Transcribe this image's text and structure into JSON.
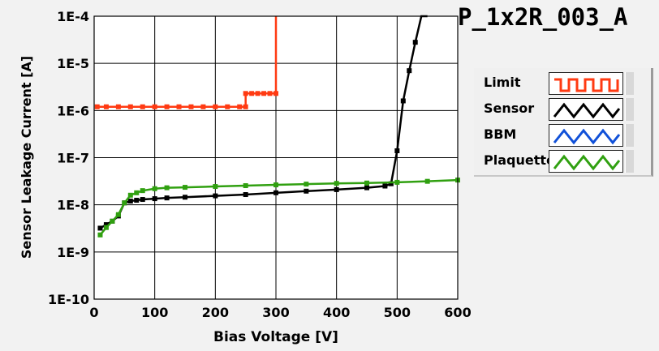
{
  "title": "P_1x2R_003_A",
  "legend": [
    {
      "label": "Limit",
      "color": "#ff3a12",
      "shape": "square-wave"
    },
    {
      "label": "Sensor",
      "color": "#000000",
      "shape": "triangle-wave"
    },
    {
      "label": "BBM",
      "color": "#1050d8",
      "shape": "triangle-wave"
    },
    {
      "label": "Plaquette",
      "color": "#30a010",
      "shape": "triangle-wave"
    }
  ],
  "chart_data": {
    "type": "line",
    "xlabel": "Bias Voltage [V]",
    "ylabel": "Sensor Leakage Current [A]",
    "xlim": [
      0,
      600
    ],
    "ylim_log10": [
      -10,
      -4
    ],
    "y_scale": "log",
    "grid": true,
    "x_ticks": [
      "0",
      "100",
      "200",
      "300",
      "400",
      "500",
      "600"
    ],
    "y_ticks": [
      "1E-10",
      "1E-9",
      "1E-8",
      "1E-7",
      "1E-6",
      "1E-5",
      "1E-4"
    ],
    "series": [
      {
        "name": "Limit",
        "color": "#ff3a12",
        "points": [
          [
            5,
            1.2e-06
          ],
          [
            20,
            1.2e-06
          ],
          [
            40,
            1.2e-06
          ],
          [
            60,
            1.2e-06
          ],
          [
            80,
            1.2e-06
          ],
          [
            100,
            1.2e-06
          ],
          [
            120,
            1.2e-06
          ],
          [
            140,
            1.2e-06
          ],
          [
            160,
            1.2e-06
          ],
          [
            180,
            1.2e-06
          ],
          [
            200,
            1.2e-06
          ],
          [
            220,
            1.2e-06
          ],
          [
            240,
            1.2e-06
          ],
          [
            250,
            1.2e-06
          ],
          [
            250,
            2.3e-06
          ],
          [
            260,
            2.3e-06
          ],
          [
            270,
            2.3e-06
          ],
          [
            280,
            2.3e-06
          ],
          [
            290,
            2.3e-06
          ],
          [
            300,
            2.3e-06
          ],
          [
            300,
            0.0001
          ]
        ]
      },
      {
        "name": "Sensor",
        "color": "#000000",
        "points": [
          [
            10,
            3.2e-09
          ],
          [
            20,
            3.8e-09
          ],
          [
            30,
            4.5e-09
          ],
          [
            40,
            5.8e-09
          ],
          [
            50,
            1.1e-08
          ],
          [
            60,
            1.2e-08
          ],
          [
            70,
            1.25e-08
          ],
          [
            80,
            1.3e-08
          ],
          [
            100,
            1.35e-08
          ],
          [
            120,
            1.4e-08
          ],
          [
            150,
            1.45e-08
          ],
          [
            200,
            1.55e-08
          ],
          [
            250,
            1.65e-08
          ],
          [
            300,
            1.8e-08
          ],
          [
            350,
            1.95e-08
          ],
          [
            400,
            2.1e-08
          ],
          [
            450,
            2.3e-08
          ],
          [
            480,
            2.5e-08
          ],
          [
            490,
            2.8e-08
          ],
          [
            500,
            1.4e-07
          ],
          [
            510,
            1.6e-06
          ],
          [
            520,
            7e-06
          ],
          [
            530,
            2.8e-05
          ],
          [
            540,
            0.0001
          ],
          [
            550,
            0.0001
          ]
        ]
      },
      {
        "name": "Plaquette",
        "color": "#30a010",
        "points": [
          [
            10,
            2.3e-09
          ],
          [
            20,
            3.3e-09
          ],
          [
            30,
            4.5e-09
          ],
          [
            40,
            6.2e-09
          ],
          [
            50,
            1.1e-08
          ],
          [
            60,
            1.6e-08
          ],
          [
            70,
            1.8e-08
          ],
          [
            80,
            2e-08
          ],
          [
            100,
            2.2e-08
          ],
          [
            120,
            2.3e-08
          ],
          [
            150,
            2.35e-08
          ],
          [
            200,
            2.45e-08
          ],
          [
            250,
            2.55e-08
          ],
          [
            300,
            2.65e-08
          ],
          [
            350,
            2.75e-08
          ],
          [
            400,
            2.85e-08
          ],
          [
            450,
            2.9e-08
          ],
          [
            500,
            3e-08
          ],
          [
            550,
            3.15e-08
          ],
          [
            600,
            3.35e-08
          ]
        ]
      }
    ]
  }
}
